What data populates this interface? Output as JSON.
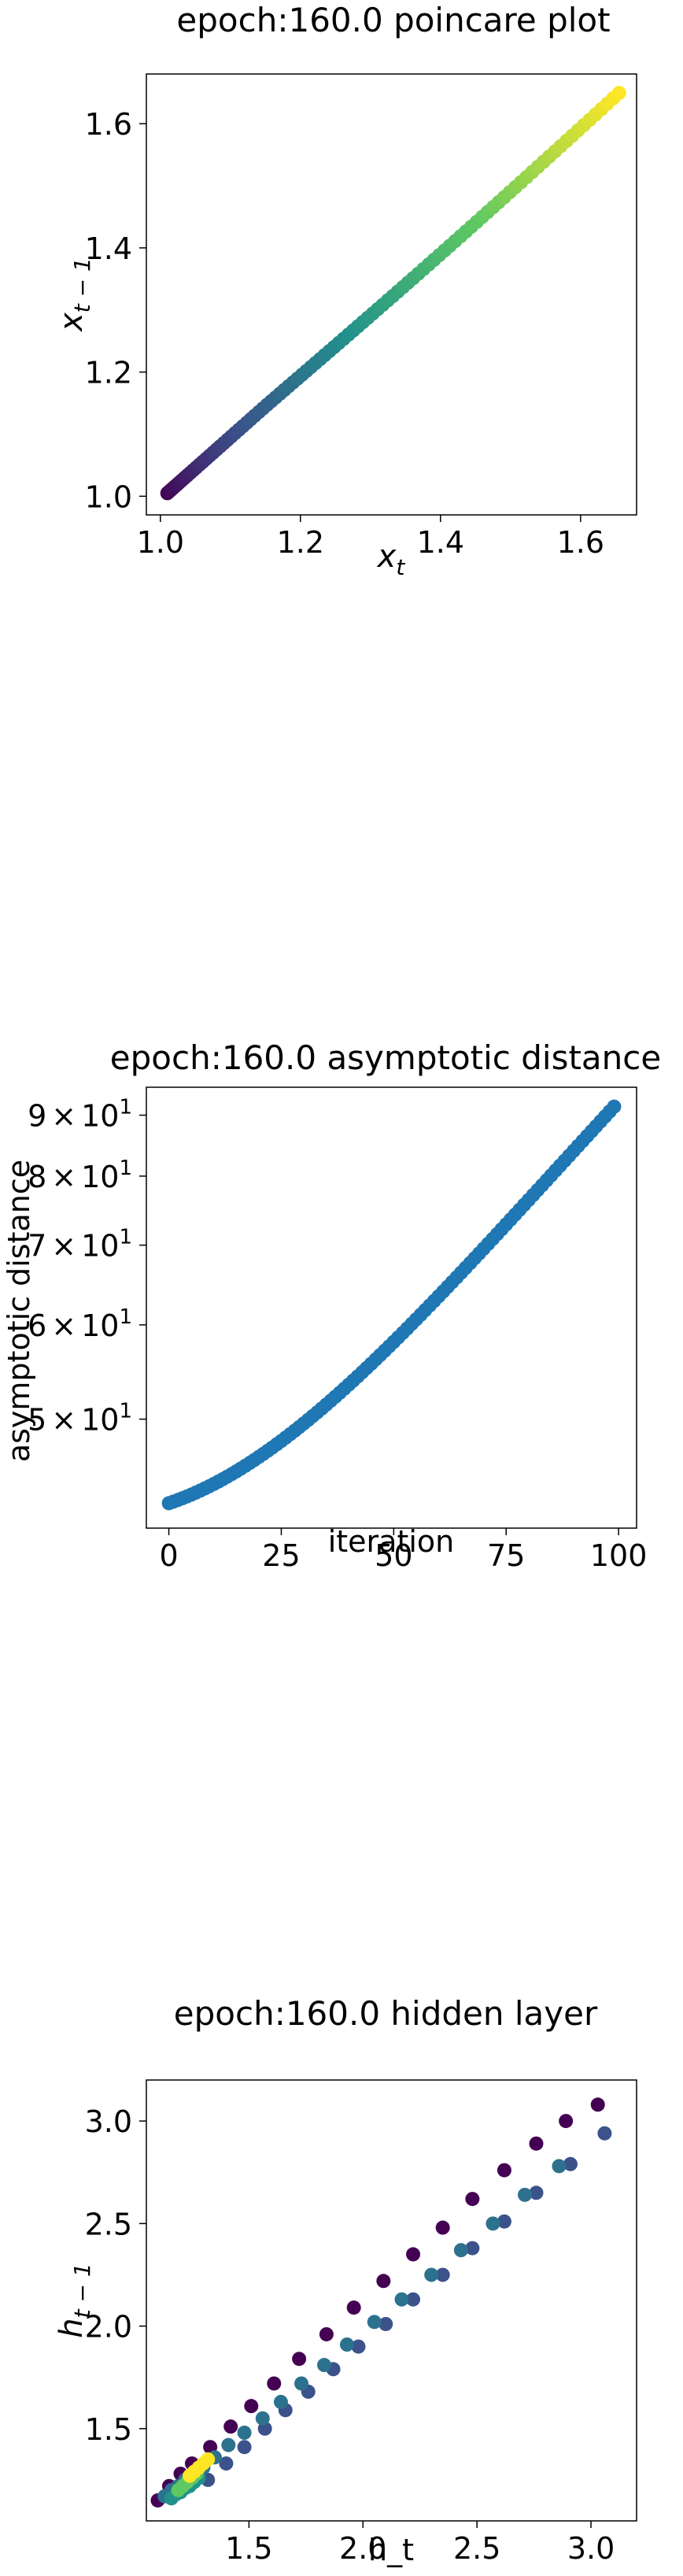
{
  "chart_data": [
    {
      "type": "scatter",
      "title": "epoch:160.0 poincare plot",
      "xlabel": "x_t",
      "ylabel": "x_{t-1}",
      "xlim": [
        0.98,
        1.68
      ],
      "ylim": [
        0.97,
        1.68
      ],
      "xticks": [
        1.0,
        1.2,
        1.4,
        1.6
      ],
      "yticks": [
        1.0,
        1.2,
        1.4,
        1.6
      ],
      "xtick_labels": [
        "1.0",
        "1.2",
        "1.4",
        "1.6"
      ],
      "ytick_labels": [
        "1.0",
        "1.2",
        "1.4",
        "1.6"
      ],
      "colormap": "viridis",
      "grid": false,
      "points": {
        "x_start": 1.01,
        "y_start": 1.005,
        "x_end": 1.655,
        "y_end": 1.65,
        "count": 100
      }
    },
    {
      "type": "scatter",
      "title": "epoch:160.0 asymptotic distance",
      "xlabel": "iteration",
      "ylabel": "asymptotic distance",
      "yscale": "log",
      "xlim": [
        -5,
        104
      ],
      "ylim": [
        40.5,
        95
      ],
      "xticks": [
        0,
        25,
        50,
        75,
        100
      ],
      "xtick_labels": [
        "0",
        "25",
        "50",
        "75",
        "100"
      ],
      "yticks": [
        50,
        60,
        70,
        80,
        90
      ],
      "ytick_labels": [
        [
          "5",
          "×",
          "10",
          "1"
        ],
        [
          "6",
          "×",
          "10",
          "1"
        ],
        [
          "7",
          "×",
          "10",
          "1"
        ],
        [
          "8",
          "×",
          "10",
          "1"
        ],
        [
          "9",
          "×",
          "10",
          "1"
        ]
      ],
      "color": "#1f77b4",
      "grid": false,
      "points": {
        "x": [
          0,
          99
        ],
        "y_start": 42.5,
        "y_end": 91.5
      }
    },
    {
      "type": "scatter",
      "title": "epoch:160.0 hidden layer",
      "xlabel": "h_t",
      "ylabel": "h_{t-1}",
      "xlim": [
        1.05,
        3.2
      ],
      "ylim": [
        1.05,
        3.2
      ],
      "xticks": [
        1.5,
        2.0,
        2.5,
        3.0
      ],
      "yticks": [
        1.5,
        2.0,
        2.5,
        3.0
      ],
      "xtick_labels": [
        "1.5",
        "2.0",
        "2.5",
        "3.0"
      ],
      "ytick_labels": [
        "1.5",
        "2.0",
        "2.5",
        "3.0"
      ],
      "colormap": "viridis",
      "grid": false,
      "series": [
        {
          "color": "#440154",
          "x": [
            1.1,
            1.15,
            1.2,
            1.25,
            1.33,
            1.42,
            1.51,
            1.61,
            1.72,
            1.84,
            1.96,
            2.09,
            2.22,
            2.35,
            2.48,
            2.62,
            2.76,
            2.89,
            3.03
          ],
          "y": [
            1.15,
            1.22,
            1.28,
            1.33,
            1.41,
            1.51,
            1.61,
            1.72,
            1.84,
            1.96,
            2.09,
            2.22,
            2.35,
            2.48,
            2.62,
            2.76,
            2.89,
            3.0,
            3.08
          ]
        },
        {
          "color": "#3b528b",
          "x": [
            1.32,
            1.4,
            1.48,
            1.57,
            1.66,
            1.76,
            1.87,
            1.98,
            2.1,
            2.22,
            2.35,
            2.48,
            2.62,
            2.76,
            2.91,
            3.06
          ],
          "y": [
            1.25,
            1.33,
            1.41,
            1.5,
            1.59,
            1.68,
            1.79,
            1.9,
            2.01,
            2.13,
            2.25,
            2.38,
            2.51,
            2.65,
            2.79,
            2.94
          ]
        },
        {
          "color": "#2c728e",
          "x": [
            1.13,
            1.16,
            1.19,
            1.22,
            1.26,
            1.3,
            1.35,
            1.41,
            1.48,
            1.56,
            1.64,
            1.73,
            1.83,
            1.93,
            2.05,
            2.17,
            2.3,
            2.43,
            2.57,
            2.71,
            2.86
          ],
          "y": [
            1.17,
            1.2,
            1.22,
            1.25,
            1.28,
            1.31,
            1.36,
            1.42,
            1.48,
            1.55,
            1.63,
            1.72,
            1.81,
            1.91,
            2.02,
            2.13,
            2.25,
            2.37,
            2.5,
            2.64,
            2.78
          ]
        },
        {
          "color": "#21918c",
          "x": [
            1.16,
            1.18,
            1.2,
            1.22,
            1.24,
            1.26,
            1.28
          ],
          "y": [
            1.16,
            1.18,
            1.19,
            1.21,
            1.22,
            1.24,
            1.26
          ]
        },
        {
          "color": "#5ec962",
          "x": [
            1.19,
            1.21,
            1.23,
            1.25,
            1.27
          ],
          "y": [
            1.2,
            1.22,
            1.24,
            1.26,
            1.28
          ]
        },
        {
          "color": "#fde725",
          "x": [
            1.24,
            1.26,
            1.28,
            1.3,
            1.32
          ],
          "y": [
            1.27,
            1.29,
            1.31,
            1.33,
            1.35
          ]
        }
      ]
    }
  ]
}
